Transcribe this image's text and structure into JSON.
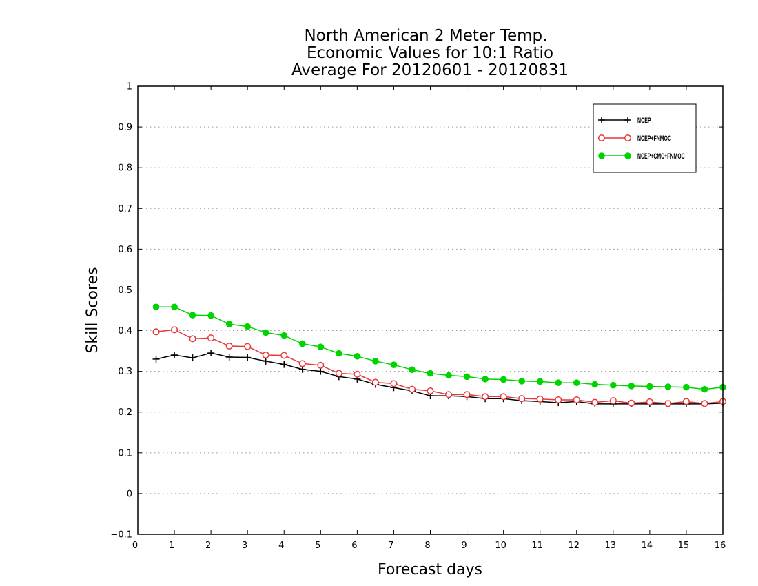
{
  "chart_data": {
    "type": "line",
    "title_lines": [
      "North American 2 Meter Temp.",
      "Economic Values for 10:1 Ratio",
      "Average For 20120601 - 20120831"
    ],
    "xlabel": "Forecast days",
    "ylabel": "Skill Scores",
    "xlim": [
      0,
      16
    ],
    "ylim": [
      -0.1,
      1
    ],
    "xticks": [
      0,
      1,
      2,
      3,
      4,
      5,
      6,
      7,
      8,
      9,
      10,
      11,
      12,
      13,
      14,
      15,
      16
    ],
    "yticks": [
      -0.1,
      0,
      0.1,
      0.2,
      0.3,
      0.4,
      0.5,
      0.6,
      0.7,
      0.8,
      0.9,
      1
    ],
    "ytick_labels": [
      "−0.1",
      "0",
      "0.1",
      "0.2",
      "0.3",
      "0.4",
      "0.5",
      "0.6",
      "0.7",
      "0.8",
      "0.9",
      "1"
    ],
    "grid": "horizontal-dotted",
    "legend_position": "top-right",
    "x": [
      0.5,
      1,
      1.5,
      2,
      2.5,
      3,
      3.5,
      4,
      4.5,
      5,
      5.5,
      6,
      6.5,
      7,
      7.5,
      8,
      8.5,
      9,
      9.5,
      10,
      10.5,
      11,
      11.5,
      12,
      12.5,
      13,
      13.5,
      14,
      14.5,
      15,
      15.5,
      16
    ],
    "series": [
      {
        "name": "NCEP",
        "color": "#000000",
        "marker": "plus",
        "values": [
          0.33,
          0.34,
          0.333,
          0.345,
          0.335,
          0.334,
          0.325,
          0.317,
          0.305,
          0.3,
          0.287,
          0.281,
          0.268,
          0.26,
          0.252,
          0.24,
          0.24,
          0.238,
          0.233,
          0.233,
          0.228,
          0.226,
          0.223,
          0.226,
          0.22,
          0.22,
          0.22,
          0.22,
          0.22,
          0.22,
          0.22,
          0.222
        ]
      },
      {
        "name": "NCEP+FNMOC",
        "color": "#e8373a",
        "marker": "open-circle",
        "values": [
          0.397,
          0.402,
          0.38,
          0.382,
          0.362,
          0.361,
          0.34,
          0.339,
          0.319,
          0.315,
          0.295,
          0.293,
          0.273,
          0.27,
          0.256,
          0.252,
          0.243,
          0.243,
          0.238,
          0.238,
          0.233,
          0.232,
          0.23,
          0.23,
          0.224,
          0.228,
          0.222,
          0.225,
          0.221,
          0.226,
          0.221,
          0.226
        ]
      },
      {
        "name": "NCEP+CMC+FNMOC",
        "color": "#00d400",
        "marker": "filled-circle",
        "values": [
          0.458,
          0.458,
          0.438,
          0.437,
          0.416,
          0.41,
          0.395,
          0.388,
          0.368,
          0.36,
          0.344,
          0.337,
          0.325,
          0.316,
          0.304,
          0.295,
          0.29,
          0.287,
          0.281,
          0.28,
          0.276,
          0.275,
          0.272,
          0.272,
          0.268,
          0.266,
          0.264,
          0.263,
          0.262,
          0.261,
          0.256,
          0.261
        ]
      }
    ]
  }
}
